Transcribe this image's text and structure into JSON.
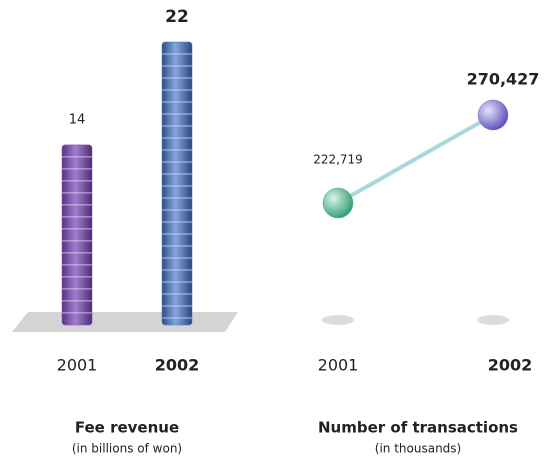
{
  "chart_data": [
    {
      "type": "bar",
      "title": "Fee revenue",
      "subtitle": "(in billions of won)",
      "categories": [
        "2001",
        "2002"
      ],
      "values": [
        14,
        22
      ],
      "colors": [
        "#7b4fab",
        "#4d72b3"
      ]
    },
    {
      "type": "line",
      "title": "Number of transactions",
      "subtitle": "(in thousands)",
      "categories": [
        "2001",
        "2002"
      ],
      "values": [
        222719,
        270427
      ],
      "value_labels": [
        "222,719",
        "270,427"
      ],
      "color": "#a8d8dc",
      "point_colors": [
        "#3fae86",
        "#7b6fcf"
      ]
    }
  ]
}
